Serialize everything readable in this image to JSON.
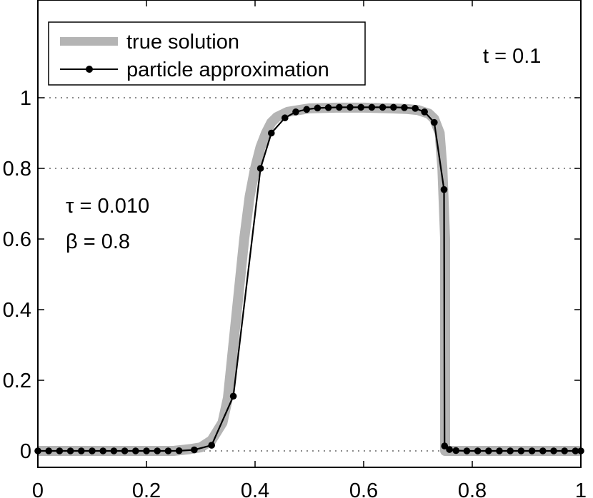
{
  "chart_data": {
    "type": "line",
    "xlim": [
      0,
      1
    ],
    "ylim": [
      -0.05,
      1.2
    ],
    "x_ticks": [
      0,
      0.2,
      0.4,
      0.6,
      0.8,
      1
    ],
    "x_tick_labels": [
      "0",
      "0.2",
      "0.4",
      "0.6",
      "0.8",
      "1"
    ],
    "y_ticks": [
      0,
      0.2,
      0.4,
      0.6,
      0.8,
      1
    ],
    "y_tick_labels": [
      "0",
      "0.2",
      "0.4",
      "0.6",
      "0.8",
      "1"
    ],
    "grid": "dotted horizontal at y = 0, 0.8, 1",
    "legend_position": "top-left",
    "annotations": {
      "time": "t = 0.1",
      "tau": "τ = 0.010",
      "beta": "β = 0.8"
    },
    "series": [
      {
        "name": "true solution",
        "color": "#b4b4b4",
        "style": "thick solid",
        "x": [
          0,
          0.05,
          0.1,
          0.15,
          0.2,
          0.25,
          0.28,
          0.3,
          0.32,
          0.34,
          0.35,
          0.36,
          0.37,
          0.38,
          0.39,
          0.4,
          0.41,
          0.42,
          0.43,
          0.44,
          0.46,
          0.48,
          0.5,
          0.55,
          0.6,
          0.65,
          0.68,
          0.7,
          0.71,
          0.72,
          0.73,
          0.74,
          0.745,
          0.75,
          0.75,
          0.76,
          0.8,
          0.85,
          0.9,
          0.95,
          1.0
        ],
        "y": [
          0,
          0,
          0,
          0,
          0,
          0,
          0.005,
          0.01,
          0.03,
          0.08,
          0.15,
          0.3,
          0.45,
          0.6,
          0.72,
          0.8,
          0.86,
          0.9,
          0.93,
          0.945,
          0.96,
          0.965,
          0.97,
          0.972,
          0.972,
          0.97,
          0.968,
          0.965,
          0.96,
          0.955,
          0.94,
          0.9,
          0.8,
          0.6,
          0,
          0,
          0,
          0,
          0,
          0,
          0
        ]
      },
      {
        "name": "particle approximation",
        "color": "#000000",
        "style": "solid with circle markers",
        "x": [
          0.0,
          0.02,
          0.04,
          0.06,
          0.08,
          0.1,
          0.12,
          0.14,
          0.16,
          0.18,
          0.2,
          0.22,
          0.24,
          0.26,
          0.288,
          0.32,
          0.36,
          0.41,
          0.43,
          0.455,
          0.475,
          0.495,
          0.515,
          0.535,
          0.555,
          0.575,
          0.595,
          0.615,
          0.635,
          0.655,
          0.675,
          0.695,
          0.712,
          0.73,
          0.748,
          0.749,
          0.758,
          0.77,
          0.79,
          0.81,
          0.83,
          0.85,
          0.87,
          0.89,
          0.91,
          0.93,
          0.95,
          0.97,
          0.99,
          1.0
        ],
        "y": [
          0,
          0,
          0,
          0,
          0,
          0,
          0,
          0,
          0,
          0,
          0,
          0,
          0,
          0.0005,
          0.003,
          0.016,
          0.155,
          0.8,
          0.9,
          0.943,
          0.96,
          0.967,
          0.971,
          0.972,
          0.973,
          0.973,
          0.973,
          0.973,
          0.973,
          0.973,
          0.972,
          0.97,
          0.96,
          0.93,
          0.74,
          0.014,
          0.004,
          0.001,
          0,
          0,
          0,
          0,
          0,
          0,
          0,
          0,
          0,
          0,
          0,
          0
        ]
      }
    ]
  }
}
